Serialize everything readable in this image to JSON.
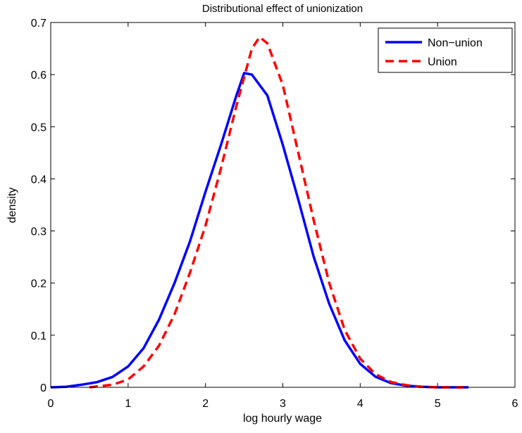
{
  "chart_data": {
    "type": "line",
    "title": "Distributional effect of unionization",
    "x_label": "log hourly wage",
    "y_label": "density",
    "xlim": [
      0,
      6
    ],
    "xticks": [
      0,
      1,
      2,
      3,
      4,
      5,
      6
    ],
    "ylim": [
      0,
      0.7
    ],
    "yticks": [
      0,
      0.1,
      0.2,
      0.3,
      0.4,
      0.5,
      0.6,
      0.7
    ],
    "legend_position": "upper-right",
    "series": [
      {
        "name": "Non−union",
        "color": "#0000ff",
        "dash": "solid",
        "x": [
          0,
          0.2,
          0.4,
          0.6,
          0.8,
          1.0,
          1.2,
          1.4,
          1.6,
          1.8,
          2.0,
          2.2,
          2.4,
          2.5,
          2.6,
          2.8,
          3.0,
          3.2,
          3.4,
          3.6,
          3.8,
          4.0,
          4.2,
          4.4,
          4.6,
          4.8,
          5.0,
          5.4
        ],
        "values": [
          0,
          0.001,
          0.005,
          0.01,
          0.02,
          0.04,
          0.075,
          0.13,
          0.2,
          0.28,
          0.375,
          0.465,
          0.56,
          0.603,
          0.6,
          0.56,
          0.465,
          0.36,
          0.25,
          0.16,
          0.09,
          0.045,
          0.02,
          0.008,
          0.003,
          0.001,
          0,
          0
        ]
      },
      {
        "name": "Union",
        "color": "#ff0000",
        "dash": "dashed",
        "x": [
          0.5,
          0.8,
          1.0,
          1.2,
          1.4,
          1.6,
          1.8,
          2.0,
          2.2,
          2.4,
          2.6,
          2.7,
          2.8,
          3.0,
          3.2,
          3.4,
          3.6,
          3.8,
          4.0,
          4.2,
          4.4,
          4.6,
          4.8,
          5.0,
          5.4
        ],
        "values": [
          0,
          0.005,
          0.015,
          0.04,
          0.08,
          0.14,
          0.22,
          0.31,
          0.42,
          0.54,
          0.65,
          0.672,
          0.66,
          0.58,
          0.45,
          0.32,
          0.2,
          0.11,
          0.055,
          0.025,
          0.01,
          0.004,
          0.001,
          0,
          0
        ]
      }
    ]
  }
}
